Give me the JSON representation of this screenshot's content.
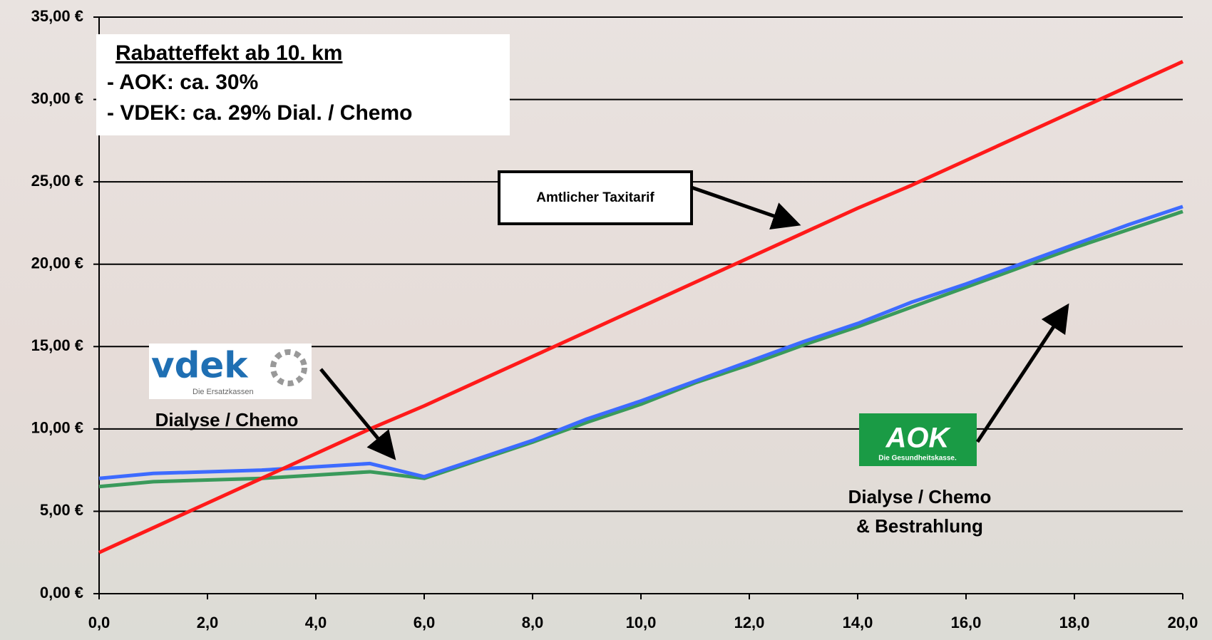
{
  "chart_data": {
    "type": "line",
    "x": [
      0,
      1,
      2,
      3,
      4,
      5,
      6,
      7,
      8,
      9,
      10,
      11,
      12,
      13,
      14,
      15,
      16,
      17,
      18,
      19,
      20
    ],
    "series": [
      {
        "color": "#ff1a1a",
        "values": [
          2.5,
          4.0,
          5.5,
          7.0,
          8.5,
          10.0,
          11.4,
          12.9,
          14.4,
          15.9,
          17.4,
          18.9,
          20.4,
          21.9,
          23.4,
          24.8,
          26.3,
          27.8,
          29.3,
          30.8,
          32.3
        ]
      },
      {
        "color": "#3d6bff",
        "values": [
          7.0,
          7.3,
          7.4,
          7.5,
          7.7,
          7.9,
          7.1,
          8.2,
          9.3,
          10.6,
          11.7,
          12.9,
          14.1,
          15.3,
          16.4,
          17.7,
          18.8,
          20.0,
          21.2,
          22.4,
          23.5
        ]
      },
      {
        "color": "#3a9a5b",
        "values": [
          6.5,
          6.8,
          6.9,
          7.0,
          7.2,
          7.4,
          7.0,
          8.1,
          9.2,
          10.4,
          11.5,
          12.8,
          13.9,
          15.1,
          16.2,
          17.4,
          18.6,
          19.8,
          21.0,
          22.1,
          23.2
        ]
      }
    ],
    "xlim": [
      0,
      20
    ],
    "ylim": [
      0,
      35
    ],
    "xticks": [
      {
        "value": 0,
        "label": "0,0"
      },
      {
        "value": 2,
        "label": "2,0"
      },
      {
        "value": 4,
        "label": "4,0"
      },
      {
        "value": 6,
        "label": "6,0"
      },
      {
        "value": 8,
        "label": "8,0"
      },
      {
        "value": 10,
        "label": "10,0"
      },
      {
        "value": 12,
        "label": "12,0"
      },
      {
        "value": 14,
        "label": "14,0"
      },
      {
        "value": 16,
        "label": "16,0"
      },
      {
        "value": 18,
        "label": "18,0"
      },
      {
        "value": 20,
        "label": "20,0"
      }
    ],
    "yticks": [
      {
        "value": 0,
        "label": "0,00 €"
      },
      {
        "value": 5,
        "label": "5,00 €"
      },
      {
        "value": 10,
        "label": "10,00 €"
      },
      {
        "value": 15,
        "label": "15,00 €"
      },
      {
        "value": 20,
        "label": "20,00 €"
      },
      {
        "value": 25,
        "label": "25,00 €"
      },
      {
        "value": 30,
        "label": "30,00 €"
      },
      {
        "value": 35,
        "label": "35,00 €"
      }
    ],
    "grid": true,
    "info_box": {
      "title": "Rabatteffekt ab 10. km",
      "lines": [
        "- AOK:   ca. 30%",
        "- VDEK: ca. 29% Dial. / Chemo"
      ]
    },
    "taxi_label": "Amtlicher Taxitarif",
    "vdek": {
      "logo": "vdek",
      "tagline": "Die Ersatzkassen",
      "label": "Dialyse / Chemo"
    },
    "aok": {
      "logo": "AOK",
      "tagline": "Die Gesundheitskasse.",
      "label": [
        "Dialyse / Chemo",
        "& Bestrahlung"
      ]
    }
  }
}
